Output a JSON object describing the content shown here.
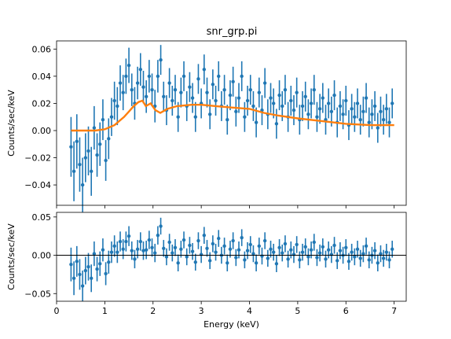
{
  "figure": {
    "title": "snr_grp.pi"
  },
  "colors": {
    "data": "#1f77b4",
    "model": "#ff7f0e",
    "axis": "#000000",
    "zero_line": "#000000"
  },
  "chart_data": [
    {
      "type": "scatter",
      "panel": "spectrum",
      "title": "snr_grp.pi",
      "xlabel": "",
      "ylabel": "Counts/sec/keV",
      "xlim": [
        0,
        7.25
      ],
      "ylim": [
        -0.055,
        0.066
      ],
      "grid": false,
      "x_ticks": [
        0,
        1,
        2,
        3,
        4,
        5,
        6,
        7
      ],
      "y_ticks": [
        -0.04,
        -0.02,
        0.0,
        0.02,
        0.04,
        0.06
      ],
      "y_tick_labels": [
        "−0.04",
        "−0.02",
        "0.00",
        "0.02",
        "0.04",
        "0.06"
      ],
      "series": [
        {
          "role": "data",
          "style": "errorbar-points",
          "color": "#1f77b4",
          "x": [
            0.3,
            0.36,
            0.42,
            0.48,
            0.54,
            0.6,
            0.66,
            0.72,
            0.78,
            0.84,
            0.9,
            0.96,
            1.02,
            1.08,
            1.14,
            1.2,
            1.26,
            1.32,
            1.38,
            1.44,
            1.5,
            1.56,
            1.62,
            1.68,
            1.74,
            1.8,
            1.86,
            1.92,
            1.98,
            2.04,
            2.1,
            2.16,
            2.22,
            2.28,
            2.34,
            2.4,
            2.46,
            2.52,
            2.58,
            2.64,
            2.7,
            2.76,
            2.82,
            2.88,
            2.94,
            3.0,
            3.06,
            3.12,
            3.18,
            3.24,
            3.3,
            3.36,
            3.42,
            3.48,
            3.54,
            3.6,
            3.66,
            3.72,
            3.78,
            3.84,
            3.9,
            3.96,
            4.02,
            4.08,
            4.14,
            4.2,
            4.26,
            4.32,
            4.38,
            4.44,
            4.5,
            4.56,
            4.62,
            4.68,
            4.74,
            4.8,
            4.86,
            4.92,
            4.98,
            5.04,
            5.1,
            5.16,
            5.22,
            5.28,
            5.34,
            5.4,
            5.46,
            5.52,
            5.58,
            5.64,
            5.7,
            5.76,
            5.82,
            5.88,
            5.94,
            6.0,
            6.06,
            6.12,
            6.18,
            6.24,
            6.3,
            6.36,
            6.42,
            6.48,
            6.54,
            6.6,
            6.66,
            6.72,
            6.78,
            6.84,
            6.9,
            6.96
          ],
          "y": [
            -0.012,
            -0.03,
            -0.008,
            -0.025,
            -0.04,
            -0.02,
            -0.015,
            -0.03,
            0.002,
            -0.018,
            -0.01,
            0.008,
            -0.022,
            -0.006,
            0.01,
            0.022,
            0.018,
            0.035,
            0.028,
            0.04,
            0.048,
            0.03,
            0.02,
            0.035,
            0.045,
            0.032,
            0.025,
            0.04,
            0.03,
            0.018,
            0.04,
            0.052,
            0.025,
            0.015,
            0.035,
            0.022,
            0.03,
            0.01,
            0.028,
            0.04,
            0.018,
            0.032,
            0.024,
            0.01,
            0.038,
            0.02,
            0.045,
            0.028,
            0.012,
            0.034,
            0.022,
            0.04,
            0.018,
            0.03,
            0.008,
            0.026,
            0.036,
            0.014,
            0.024,
            0.04,
            0.01,
            0.022,
            0.03,
            0.018,
            0.006,
            0.028,
            0.015,
            0.035,
            0.012,
            0.024,
            0.02,
            0.005,
            0.026,
            0.018,
            0.03,
            0.01,
            0.022,
            0.015,
            0.028,
            0.008,
            0.018,
            0.025,
            0.012,
            0.02,
            0.03,
            0.01,
            0.016,
            0.024,
            0.008,
            0.02,
            0.014,
            0.026,
            0.006,
            0.018,
            0.012,
            0.022,
            0.004,
            0.016,
            0.01,
            0.02,
            0.008,
            0.014,
            0.024,
            0.006,
            0.012,
            0.018,
            0.002,
            0.014,
            0.008,
            0.016,
            0.006,
            0.02
          ],
          "yerr": [
            0.022,
            0.022,
            0.02,
            0.02,
            0.02,
            0.018,
            0.018,
            0.018,
            0.016,
            0.016,
            0.016,
            0.015,
            0.015,
            0.015,
            0.014,
            0.014,
            0.014,
            0.013,
            0.013,
            0.013,
            0.013,
            0.012,
            0.012,
            0.012,
            0.012,
            0.012,
            0.012,
            0.012,
            0.012,
            0.012,
            0.012,
            0.011,
            0.011,
            0.011,
            0.011,
            0.011,
            0.011,
            0.011,
            0.011,
            0.011,
            0.011,
            0.011,
            0.011,
            0.011,
            0.011,
            0.011,
            0.011,
            0.011,
            0.011,
            0.011,
            0.011,
            0.011,
            0.011,
            0.011,
            0.011,
            0.011,
            0.011,
            0.011,
            0.011,
            0.011,
            0.011,
            0.011,
            0.011,
            0.011,
            0.011,
            0.011,
            0.011,
            0.011,
            0.011,
            0.011,
            0.011,
            0.011,
            0.011,
            0.011,
            0.011,
            0.011,
            0.011,
            0.011,
            0.011,
            0.011,
            0.011,
            0.011,
            0.011,
            0.011,
            0.011,
            0.011,
            0.011,
            0.011,
            0.011,
            0.011,
            0.011,
            0.011,
            0.011,
            0.011,
            0.011,
            0.011,
            0.011,
            0.011,
            0.011,
            0.011,
            0.011,
            0.011,
            0.011,
            0.011,
            0.011,
            0.011,
            0.011,
            0.011,
            0.011,
            0.011,
            0.011,
            0.011
          ]
        },
        {
          "role": "model",
          "style": "line",
          "color": "#ff7f0e",
          "x": [
            0.3,
            0.5,
            0.8,
            1.0,
            1.2,
            1.4,
            1.5,
            1.6,
            1.7,
            1.78,
            1.85,
            1.95,
            2.05,
            2.15,
            2.3,
            2.5,
            2.8,
            3.0,
            3.3,
            3.6,
            4.0,
            4.3,
            4.6,
            5.0,
            5.5,
            6.0,
            6.5,
            7.0
          ],
          "y": [
            0.0,
            0.0,
            0.0,
            0.001,
            0.004,
            0.01,
            0.014,
            0.018,
            0.021,
            0.022,
            0.018,
            0.02,
            0.015,
            0.013,
            0.016,
            0.018,
            0.019,
            0.019,
            0.018,
            0.017,
            0.016,
            0.013,
            0.011,
            0.009,
            0.007,
            0.005,
            0.004,
            0.004
          ]
        }
      ]
    },
    {
      "type": "scatter",
      "panel": "residuals",
      "title": "",
      "xlabel": "Energy (keV)",
      "ylabel": "Counts/sec/keV",
      "xlim": [
        0,
        7.25
      ],
      "ylim": [
        -0.06,
        0.056
      ],
      "grid": false,
      "x_ticks": [
        0,
        1,
        2,
        3,
        4,
        5,
        6,
        7
      ],
      "x_tick_labels": [
        "0",
        "1",
        "2",
        "3",
        "4",
        "5",
        "6",
        "7"
      ],
      "y_ticks": [
        -0.05,
        0.0,
        0.05
      ],
      "y_tick_labels": [
        "−0.05",
        "0.00",
        "0.05"
      ],
      "reference_line": 0.0,
      "series": [
        {
          "role": "residual",
          "style": "errorbar-points",
          "color": "#1f77b4",
          "x": [
            0.3,
            0.36,
            0.42,
            0.48,
            0.54,
            0.6,
            0.66,
            0.72,
            0.78,
            0.84,
            0.9,
            0.96,
            1.02,
            1.08,
            1.14,
            1.2,
            1.26,
            1.32,
            1.38,
            1.44,
            1.5,
            1.56,
            1.62,
            1.68,
            1.74,
            1.8,
            1.86,
            1.92,
            1.98,
            2.04,
            2.1,
            2.16,
            2.22,
            2.28,
            2.34,
            2.4,
            2.46,
            2.52,
            2.58,
            2.64,
            2.7,
            2.76,
            2.82,
            2.88,
            2.94,
            3.0,
            3.06,
            3.12,
            3.18,
            3.24,
            3.3,
            3.36,
            3.42,
            3.48,
            3.54,
            3.6,
            3.66,
            3.72,
            3.78,
            3.84,
            3.9,
            3.96,
            4.02,
            4.08,
            4.14,
            4.2,
            4.26,
            4.32,
            4.38,
            4.44,
            4.5,
            4.56,
            4.62,
            4.68,
            4.74,
            4.8,
            4.86,
            4.92,
            4.98,
            5.04,
            5.1,
            5.16,
            5.22,
            5.28,
            5.34,
            5.4,
            5.46,
            5.52,
            5.58,
            5.64,
            5.7,
            5.76,
            5.82,
            5.88,
            5.94,
            6.0,
            6.06,
            6.12,
            6.18,
            6.24,
            6.3,
            6.36,
            6.42,
            6.48,
            6.54,
            6.6,
            6.66,
            6.72,
            6.78,
            6.84,
            6.9,
            6.96
          ],
          "y": [
            -0.012,
            -0.03,
            -0.008,
            -0.025,
            -0.04,
            -0.02,
            -0.015,
            -0.03,
            0.002,
            -0.018,
            -0.011,
            0.007,
            -0.024,
            -0.009,
            0.004,
            0.012,
            0.004,
            0.018,
            0.008,
            0.018,
            0.025,
            0.006,
            -0.005,
            0.008,
            0.018,
            0.006,
            0.007,
            0.02,
            0.01,
            0.003,
            0.026,
            0.038,
            0.009,
            -0.002,
            0.017,
            0.003,
            0.01,
            -0.01,
            0.008,
            0.02,
            -0.002,
            0.013,
            0.005,
            -0.009,
            0.019,
            0.001,
            0.026,
            0.009,
            -0.007,
            0.015,
            0.004,
            0.022,
            0.0,
            0.012,
            -0.01,
            0.008,
            0.019,
            -0.003,
            0.007,
            0.023,
            -0.006,
            0.006,
            0.014,
            0.002,
            -0.01,
            0.012,
            -0.001,
            0.019,
            -0.004,
            0.008,
            0.004,
            -0.011,
            0.01,
            0.003,
            0.015,
            -0.005,
            0.007,
            0.001,
            0.014,
            -0.006,
            0.004,
            0.011,
            -0.002,
            0.007,
            0.017,
            -0.003,
            0.003,
            0.011,
            -0.005,
            0.007,
            0.001,
            0.013,
            -0.007,
            0.006,
            0.0,
            0.01,
            -0.008,
            0.004,
            -0.002,
            0.008,
            -0.004,
            0.002,
            0.012,
            -0.006,
            0.0,
            0.006,
            -0.01,
            0.002,
            -0.004,
            0.004,
            -0.006,
            0.008
          ],
          "yerr": [
            0.022,
            0.022,
            0.02,
            0.02,
            0.02,
            0.018,
            0.018,
            0.018,
            0.016,
            0.016,
            0.016,
            0.015,
            0.015,
            0.015,
            0.014,
            0.014,
            0.014,
            0.013,
            0.013,
            0.013,
            0.013,
            0.012,
            0.012,
            0.012,
            0.012,
            0.012,
            0.012,
            0.012,
            0.012,
            0.012,
            0.012,
            0.011,
            0.011,
            0.011,
            0.011,
            0.011,
            0.011,
            0.011,
            0.011,
            0.011,
            0.011,
            0.011,
            0.011,
            0.011,
            0.011,
            0.011,
            0.011,
            0.011,
            0.011,
            0.011,
            0.011,
            0.011,
            0.011,
            0.011,
            0.011,
            0.011,
            0.011,
            0.011,
            0.011,
            0.011,
            0.011,
            0.011,
            0.011,
            0.011,
            0.011,
            0.011,
            0.011,
            0.011,
            0.011,
            0.011,
            0.011,
            0.011,
            0.011,
            0.011,
            0.011,
            0.011,
            0.011,
            0.011,
            0.011,
            0.011,
            0.011,
            0.011,
            0.011,
            0.011,
            0.011,
            0.011,
            0.011,
            0.011,
            0.011,
            0.011,
            0.011,
            0.011,
            0.011,
            0.011,
            0.011,
            0.011,
            0.011,
            0.011,
            0.011,
            0.011,
            0.011,
            0.011,
            0.011,
            0.011,
            0.011,
            0.011,
            0.011,
            0.011,
            0.011,
            0.011,
            0.011,
            0.011
          ]
        }
      ]
    }
  ]
}
